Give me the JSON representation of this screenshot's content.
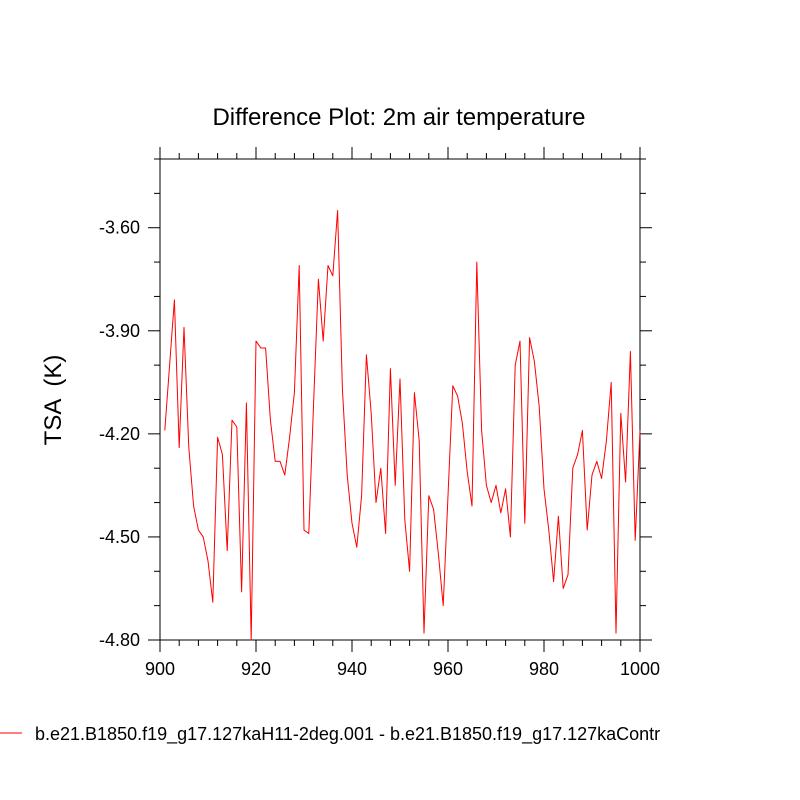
{
  "chart_data": {
    "type": "line",
    "title": "Difference Plot: 2m air temperature",
    "xlabel": "",
    "ylabel": "TSA  (K)",
    "xlim": [
      900,
      1000
    ],
    "ylim": [
      -4.8,
      -3.4
    ],
    "x_ticks": [
      900,
      920,
      940,
      960,
      980,
      1000
    ],
    "x_tick_labels": [
      "900",
      "920",
      "940",
      "960",
      "980",
      "1000"
    ],
    "y_ticks": [
      -4.8,
      -4.5,
      -4.2,
      -3.9,
      -3.6
    ],
    "y_tick_labels": [
      "-4.80",
      "-4.50",
      "-4.20",
      "-3.90",
      "-3.60"
    ],
    "grid": false,
    "legend_position": "bottom-left",
    "series": [
      {
        "name": "b.e21.B1850.f19_g17.127kaH11-2deg.001 - b.e21.B1850.f19_g17.127kaContr",
        "color": "#ff0000",
        "x": [
          901,
          902,
          903,
          904,
          905,
          906,
          907,
          908,
          909,
          910,
          911,
          912,
          913,
          914,
          915,
          916,
          917,
          918,
          919,
          920,
          921,
          922,
          923,
          924,
          925,
          926,
          927,
          928,
          929,
          930,
          931,
          932,
          933,
          934,
          935,
          936,
          937,
          938,
          939,
          940,
          941,
          942,
          943,
          944,
          945,
          946,
          947,
          948,
          949,
          950,
          951,
          952,
          953,
          954,
          955,
          956,
          957,
          958,
          959,
          960,
          961,
          962,
          963,
          964,
          965,
          966,
          967,
          968,
          969,
          970,
          971,
          972,
          973,
          974,
          975,
          976,
          977,
          978,
          979,
          980,
          981,
          982,
          983,
          984,
          985,
          986,
          987,
          988,
          989,
          990,
          991,
          992,
          993,
          994,
          995,
          996,
          997,
          998,
          999,
          1000
        ],
        "y": [
          -4.19,
          -4.0,
          -3.81,
          -4.24,
          -3.89,
          -4.24,
          -4.41,
          -4.48,
          -4.5,
          -4.57,
          -4.69,
          -4.21,
          -4.26,
          -4.54,
          -4.16,
          -4.18,
          -4.66,
          -4.11,
          -4.8,
          -3.93,
          -3.95,
          -3.95,
          -4.16,
          -4.28,
          -4.28,
          -4.32,
          -4.21,
          -4.08,
          -3.71,
          -4.48,
          -4.49,
          -4.11,
          -3.75,
          -3.93,
          -3.71,
          -3.74,
          -3.55,
          -4.07,
          -4.32,
          -4.46,
          -4.53,
          -4.38,
          -3.97,
          -4.14,
          -4.4,
          -4.3,
          -4.49,
          -4.01,
          -4.35,
          -4.04,
          -4.45,
          -4.6,
          -4.08,
          -4.22,
          -4.78,
          -4.38,
          -4.42,
          -4.55,
          -4.7,
          -4.38,
          -4.06,
          -4.09,
          -4.17,
          -4.31,
          -4.41,
          -3.7,
          -4.19,
          -4.35,
          -4.4,
          -4.35,
          -4.43,
          -4.36,
          -4.5,
          -4.0,
          -3.93,
          -4.46,
          -3.92,
          -3.99,
          -4.12,
          -4.36,
          -4.48,
          -4.63,
          -4.44,
          -4.65,
          -4.61,
          -4.3,
          -4.26,
          -4.19,
          -4.48,
          -4.32,
          -4.28,
          -4.33,
          -4.22,
          -4.05,
          -4.78,
          -4.14,
          -4.34,
          -3.96,
          -4.51,
          -4.19
        ]
      }
    ]
  }
}
